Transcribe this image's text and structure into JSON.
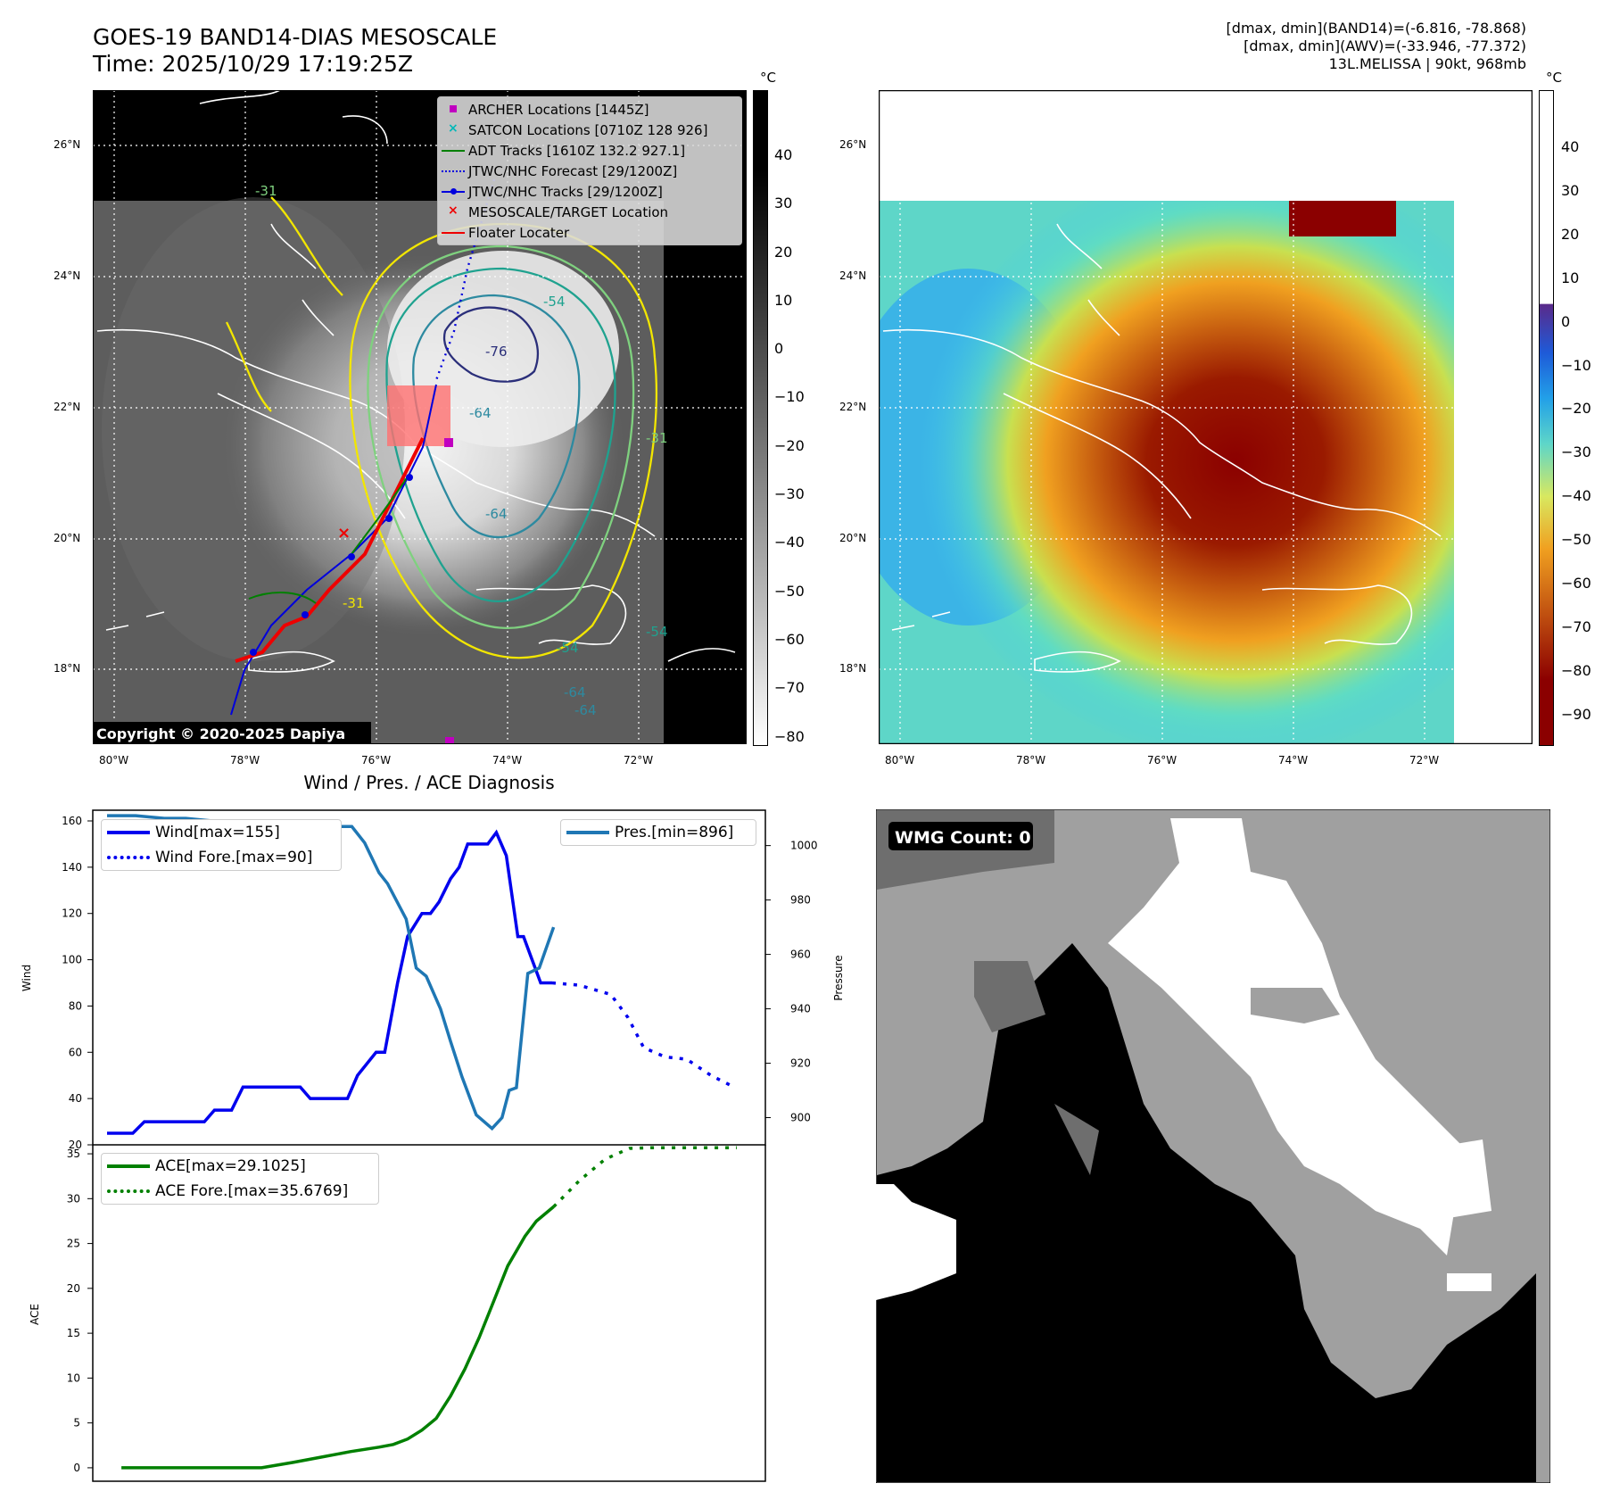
{
  "header": {
    "title_line1": "GOES-19 BAND14-DIAS MESOSCALE",
    "title_line2": "Time: 2025/10/29 17:19:25Z",
    "info_line1": "[dmax, dmin](BAND14)=(-6.816, -78.868)",
    "info_line2": "[dmax, dmin](AWV)=(-33.946, -77.372)",
    "info_line3": "13L.MELISSA | 90kt, 968mb"
  },
  "map": {
    "lat_labels": [
      "26°N",
      "24°N",
      "22°N",
      "20°N",
      "18°N"
    ],
    "lon_labels": [
      "80°W",
      "78°W",
      "76°W",
      "74°W",
      "72°W"
    ],
    "copyright": "Copyright © 2020-2025 Dapiya",
    "contour_labels": [
      "-31",
      "-54",
      "-64",
      "-76",
      "-64",
      "-54",
      "-64",
      "-31",
      "-54",
      "-31",
      "-64"
    ],
    "legend": [
      {
        "label": "ARCHER Locations [1445Z]",
        "color": "#c000c0",
        "symbol": "square"
      },
      {
        "label": "SATCON Locations [0710Z 128 926]",
        "color": "#00b8b8",
        "symbol": "x"
      },
      {
        "label": "ADT Tracks [1610Z 132.2 927.1]",
        "color": "#008000",
        "symbol": "line"
      },
      {
        "label": "JTWC/NHC Forecast [29/1200Z]",
        "color": "#0000dd",
        "symbol": "dotted"
      },
      {
        "label": "JTWC/NHC Tracks [29/1200Z]",
        "color": "#0000dd",
        "symbol": "line-dot"
      },
      {
        "label": "MESOSCALE/TARGET Location",
        "color": "#ee0000",
        "symbol": "x"
      },
      {
        "label": "Floater Locater",
        "color": "#ee0000",
        "symbol": "line"
      }
    ]
  },
  "colorbar_left": {
    "unit": "°C",
    "ticks": [
      "40",
      "30",
      "20",
      "10",
      "0",
      "−10",
      "−20",
      "−30",
      "−40",
      "−50",
      "−60",
      "−70",
      "−80"
    ]
  },
  "colorbar_right": {
    "unit": "°C",
    "ticks": [
      "40",
      "30",
      "20",
      "10",
      "0",
      "−10",
      "−20",
      "−30",
      "−40",
      "−50",
      "−60",
      "−70",
      "−80",
      "−90"
    ]
  },
  "wmg": {
    "label": "WMG Count: 0"
  },
  "chart_data": [
    {
      "type": "line",
      "title": "Wind / Pres. / ACE Diagnosis",
      "ylabel": "Wind",
      "y2label": "Pressure",
      "ylim": [
        20,
        160
      ],
      "y2lim": [
        890,
        1013
      ],
      "xlim": [
        0,
        47
      ],
      "yticks": [
        20,
        40,
        60,
        80,
        100,
        120,
        140,
        160
      ],
      "y2ticks": [
        900,
        920,
        940,
        960,
        980,
        1000
      ],
      "series": [
        {
          "name": "Wind[max=155]",
          "axis": "left",
          "color": "#0000ee",
          "style": "solid",
          "x": [
            1,
            2.8,
            3.6,
            5.5,
            7.8,
            8.5,
            9.7,
            10.5,
            11.8,
            14.5,
            15.2,
            17.8,
            18.5,
            19.8,
            20.4,
            21.3,
            22,
            23,
            23.6,
            24.2,
            25,
            25.6,
            26.2,
            27.2,
            27.6,
            28.2,
            28.9,
            29.7,
            30.1,
            30.7,
            31.3,
            32.1
          ],
          "values": [
            25,
            25,
            30,
            30,
            30,
            35,
            35,
            45,
            45,
            45,
            40,
            40,
            50,
            60,
            60,
            90,
            110,
            120,
            120,
            125,
            135,
            140,
            150,
            150,
            150,
            155,
            145,
            110,
            110,
            100,
            90,
            90
          ]
        },
        {
          "name": "Wind Fore.[max=90]",
          "axis": "left",
          "color": "#0000ee",
          "style": "dotted",
          "x": [
            32.1,
            34,
            36.2,
            37.4,
            38.5,
            40,
            41.5,
            43.2,
            44.8
          ],
          "values": [
            90,
            89,
            85,
            75,
            62,
            58,
            57,
            50,
            45
          ]
        },
        {
          "name": "Pres.[min=896]",
          "axis": "right",
          "color": "#1f77b4",
          "style": "solid",
          "x": [
            1,
            3,
            5,
            6.5,
            8.5,
            10.5,
            11.3,
            12.5,
            14,
            15,
            16.8,
            18.1,
            19,
            20,
            20.6,
            21.9,
            22.6,
            23.3,
            24.3,
            25,
            25.8,
            26.8,
            27.9,
            28.6,
            29.1,
            29.6,
            30.4,
            31.2,
            32.2
          ],
          "values": [
            1011,
            1011,
            1010,
            1010,
            1009,
            1006,
            1006,
            1005,
            1005,
            1007,
            1007,
            1007,
            1001,
            990,
            986,
            973,
            955,
            952,
            940,
            928,
            915,
            901,
            896,
            900,
            910,
            911,
            953,
            955,
            970
          ]
        }
      ]
    },
    {
      "type": "line",
      "ylabel": "ACE",
      "ylim": [
        -1.5,
        36
      ],
      "xlim": [
        0,
        47
      ],
      "yticks": [
        0,
        5,
        10,
        15,
        20,
        25,
        30,
        35
      ],
      "series": [
        {
          "name": "ACE[max=29.1025]",
          "color": "#008000",
          "style": "solid",
          "x": [
            2,
            5,
            8,
            10.2,
            11.8,
            14,
            16,
            18,
            20,
            21,
            22,
            23,
            24,
            25,
            26,
            27,
            28,
            29,
            30.2,
            31,
            32.2
          ],
          "values": [
            0,
            0,
            0,
            0,
            0,
            0.6,
            1.2,
            1.8,
            2.3,
            2.6,
            3.2,
            4.2,
            5.5,
            8,
            11,
            14.5,
            18.5,
            22.5,
            25.8,
            27.5,
            29.1
          ]
        },
        {
          "name": "ACE Fore.[max=35.6769]",
          "color": "#008000",
          "style": "dotted",
          "x": [
            32.2,
            34,
            35.8,
            37.5,
            39,
            41,
            43,
            45
          ],
          "values": [
            29.1,
            32,
            34.4,
            35.6,
            35.68,
            35.68,
            35.68,
            35.68
          ]
        }
      ]
    }
  ]
}
